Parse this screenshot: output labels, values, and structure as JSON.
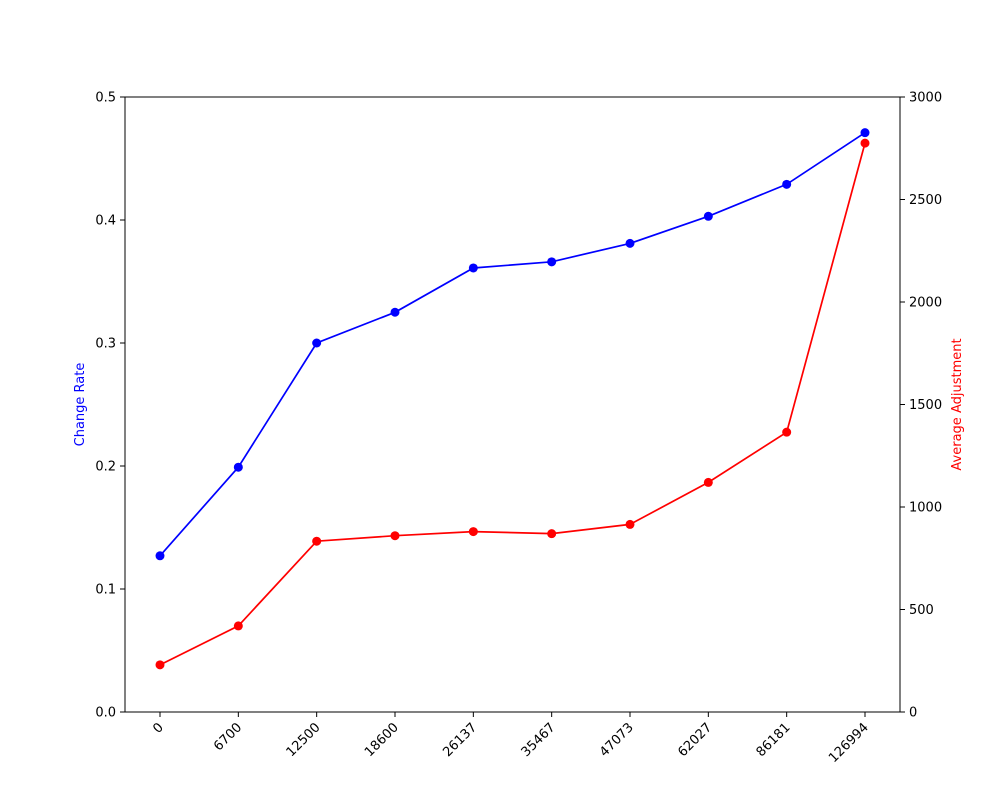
{
  "chart_data": {
    "type": "line",
    "categories": [
      "0",
      "6700",
      "12500",
      "18600",
      "26137",
      "35467",
      "47073",
      "62027",
      "86181",
      "126994"
    ],
    "series": [
      {
        "axis": "left",
        "color": "#0000ff",
        "values": [
          0.127,
          0.199,
          0.3,
          0.325,
          0.361,
          0.366,
          0.381,
          0.403,
          0.429,
          0.471
        ]
      },
      {
        "axis": "right",
        "color": "#ff0000",
        "values": [
          230,
          420,
          833,
          860,
          880,
          870,
          915,
          1120,
          1365,
          2775
        ]
      }
    ],
    "ylabel_left": "Change Rate",
    "ylabel_right": "Average Adjustment",
    "ylim_left": [
      0,
      0.5
    ],
    "ylim_right": [
      0,
      3000
    ],
    "yticks_left": [
      "0.0",
      "0.1",
      "0.2",
      "0.3",
      "0.4",
      "0.5"
    ],
    "yticks_right": [
      "0",
      "500",
      "1000",
      "1500",
      "2000",
      "2500",
      "3000"
    ],
    "left_label_color": "#0000ff",
    "right_label_color": "#ff0000",
    "grid": false,
    "markers": true
  }
}
